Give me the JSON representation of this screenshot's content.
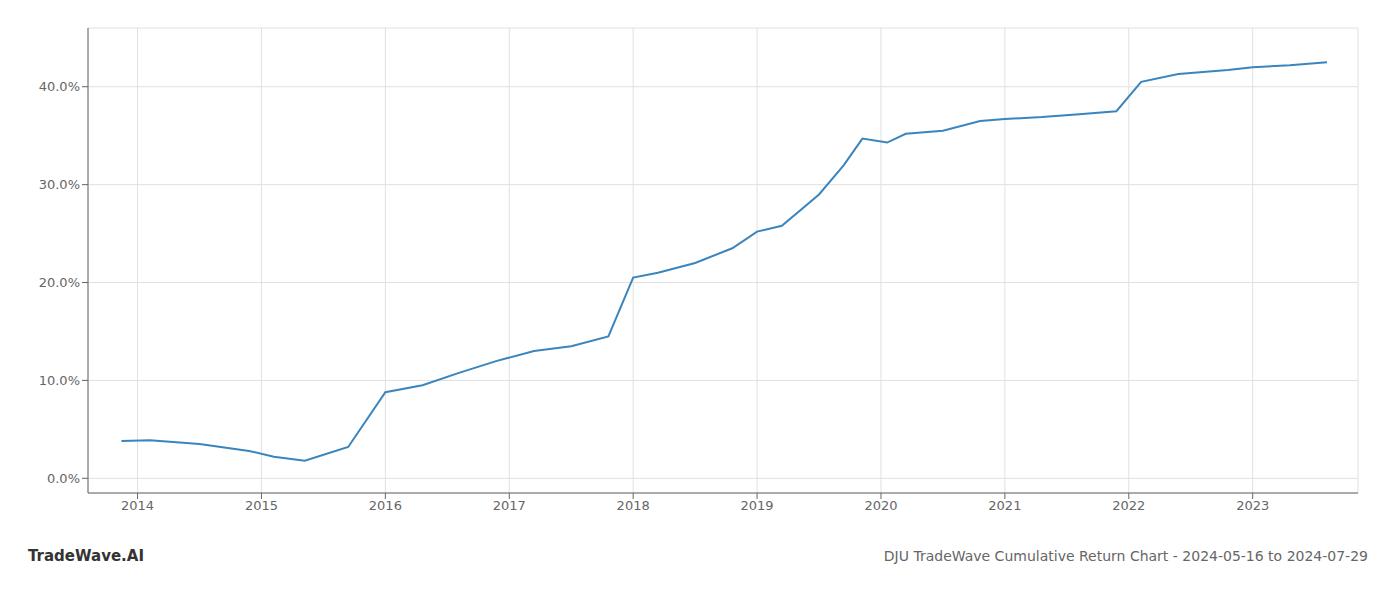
{
  "chart_data": {
    "type": "line",
    "title": "DJU TradeWave Cumulative Return Chart - 2024-05-16 to 2024-07-29",
    "annotations": [
      "TradeWave.AI"
    ],
    "x": [
      2013.87,
      2014.1,
      2014.5,
      2014.9,
      2015.1,
      2015.35,
      2015.7,
      2016.0,
      2016.3,
      2016.6,
      2016.9,
      2017.2,
      2017.5,
      2017.8,
      2018.0,
      2018.2,
      2018.5,
      2018.8,
      2019.0,
      2019.2,
      2019.5,
      2019.7,
      2019.85,
      2020.05,
      2020.2,
      2020.5,
      2020.8,
      2021.0,
      2021.3,
      2021.6,
      2021.9,
      2022.1,
      2022.4,
      2022.6,
      2022.8,
      2023.0,
      2023.3,
      2023.6
    ],
    "values": [
      3.8,
      3.9,
      3.5,
      2.8,
      2.2,
      1.8,
      3.2,
      8.8,
      9.5,
      10.8,
      12.0,
      13.0,
      13.5,
      14.5,
      20.5,
      21.0,
      22.0,
      23.5,
      25.2,
      25.8,
      29.0,
      32.0,
      34.7,
      34.3,
      35.2,
      35.5,
      36.5,
      36.7,
      36.9,
      37.2,
      37.5,
      40.5,
      41.3,
      41.5,
      41.7,
      42.0,
      42.2,
      42.5
    ],
    "color": "#3a85bd",
    "xlim": [
      2013.6,
      2023.85
    ],
    "ylim": [
      -1.5,
      46
    ],
    "xticks": [
      2014,
      2015,
      2016,
      2017,
      2018,
      2019,
      2020,
      2021,
      2022,
      2023
    ],
    "yticks": [
      {
        "value": 0,
        "label": "0.0%"
      },
      {
        "value": 10,
        "label": "10.0%"
      },
      {
        "value": 20,
        "label": "20.0%"
      },
      {
        "value": 30,
        "label": "30.0%"
      },
      {
        "value": 40,
        "label": "40.0%"
      }
    ],
    "grid": true
  }
}
